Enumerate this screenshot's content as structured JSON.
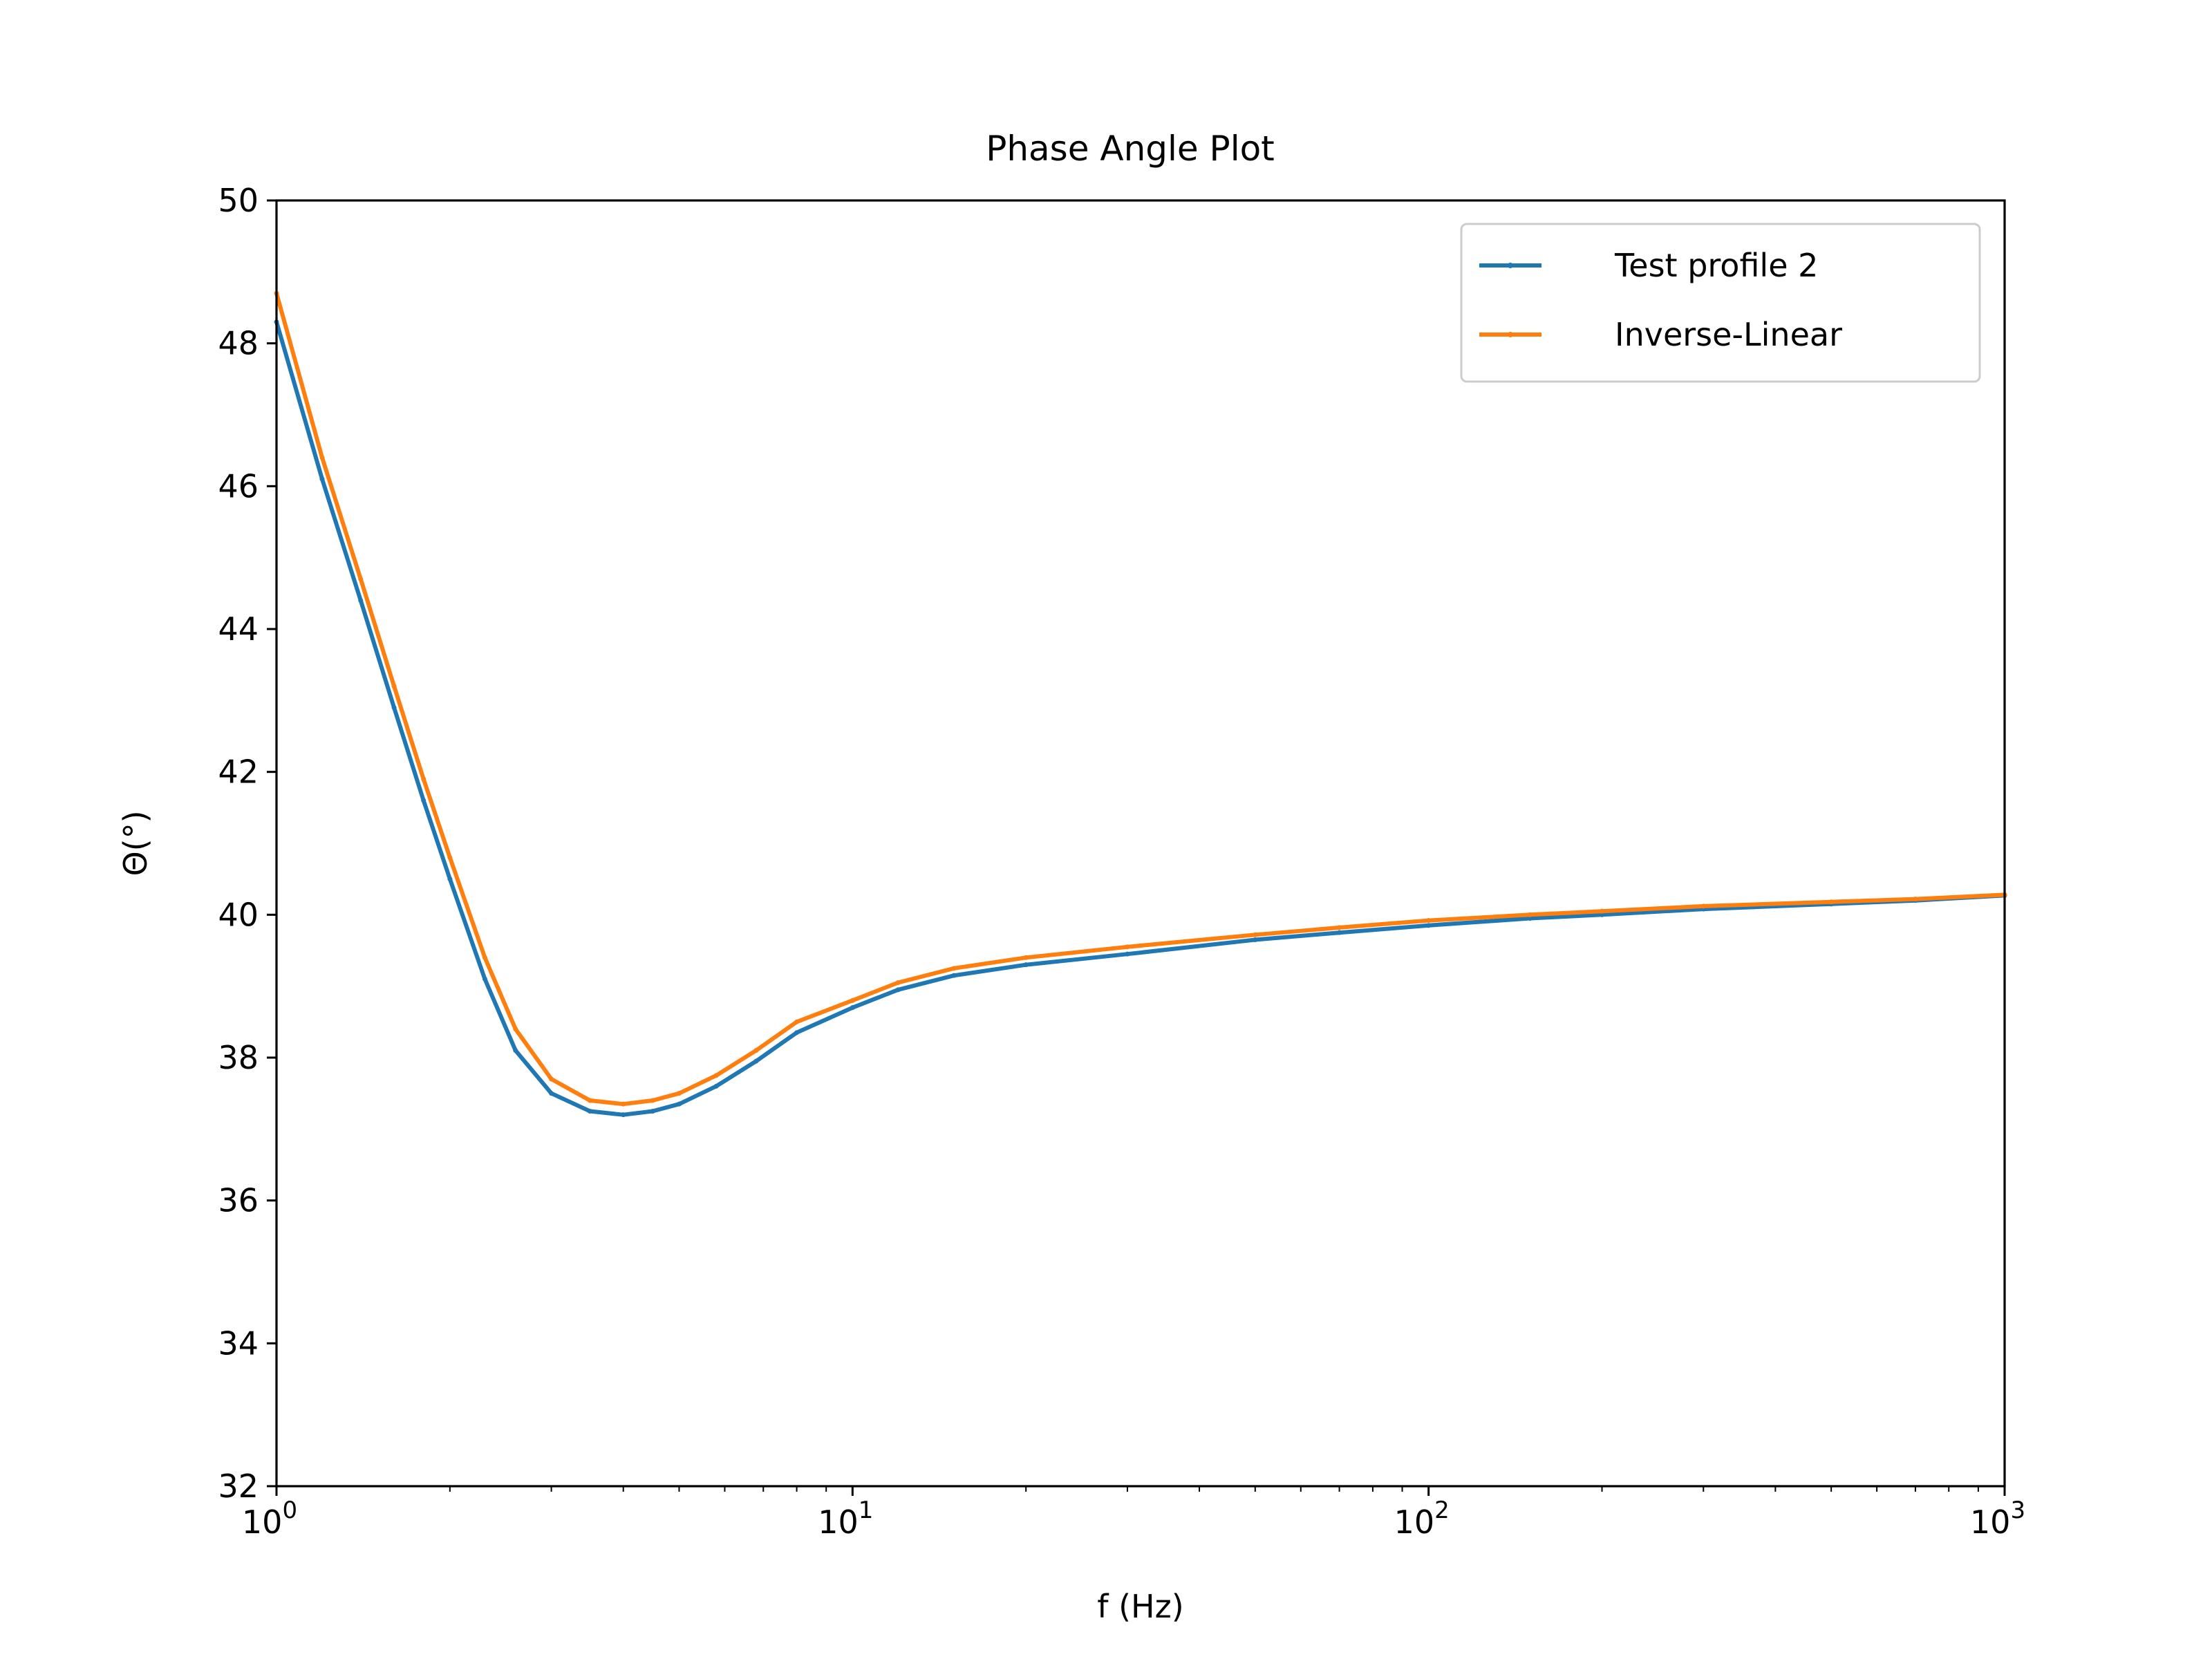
{
  "chart_data": {
    "type": "line",
    "title": "Phase Angle Plot",
    "xlabel": "f (Hz)",
    "ylabel": "Θ(°)",
    "x_scale": "log",
    "xlim": [
      1,
      1000
    ],
    "ylim": [
      32,
      50
    ],
    "x_ticks": [
      {
        "value": 1,
        "base": "10",
        "exp": "0"
      },
      {
        "value": 10,
        "base": "10",
        "exp": "1"
      },
      {
        "value": 100,
        "base": "10",
        "exp": "2"
      },
      {
        "value": 1000,
        "base": "10",
        "exp": "3"
      }
    ],
    "y_ticks": [
      32,
      34,
      36,
      38,
      40,
      42,
      44,
      46,
      48,
      50
    ],
    "grid": false,
    "legend_position": "top-right",
    "x": [
      1.0,
      1.2,
      1.4,
      1.6,
      1.8,
      2.0,
      2.3,
      2.6,
      3.0,
      3.5,
      4.0,
      4.5,
      5.0,
      5.8,
      6.8,
      8.0,
      10.0,
      12.0,
      15.0,
      20.0,
      30.0,
      50.0,
      70.0,
      100.0,
      150.0,
      200.0,
      300.0,
      500.0,
      700.0,
      1000.0
    ],
    "series": [
      {
        "name": "Test profile 2",
        "color": "#1f77b4",
        "values": [
          48.3,
          46.1,
          44.4,
          42.9,
          41.6,
          40.5,
          39.1,
          38.1,
          37.5,
          37.25,
          37.2,
          37.25,
          37.35,
          37.6,
          37.95,
          38.35,
          38.7,
          38.95,
          39.15,
          39.3,
          39.45,
          39.65,
          39.75,
          39.85,
          39.95,
          40.0,
          40.08,
          40.15,
          40.2,
          40.27
        ]
      },
      {
        "name": "Inverse-Linear",
        "color": "#ff7f0e",
        "values": [
          48.7,
          46.4,
          44.7,
          43.2,
          41.9,
          40.8,
          39.4,
          38.4,
          37.7,
          37.4,
          37.35,
          37.4,
          37.5,
          37.75,
          38.1,
          38.5,
          38.8,
          39.05,
          39.25,
          39.4,
          39.55,
          39.72,
          39.82,
          39.92,
          40.0,
          40.05,
          40.12,
          40.18,
          40.22,
          40.28
        ]
      }
    ]
  }
}
